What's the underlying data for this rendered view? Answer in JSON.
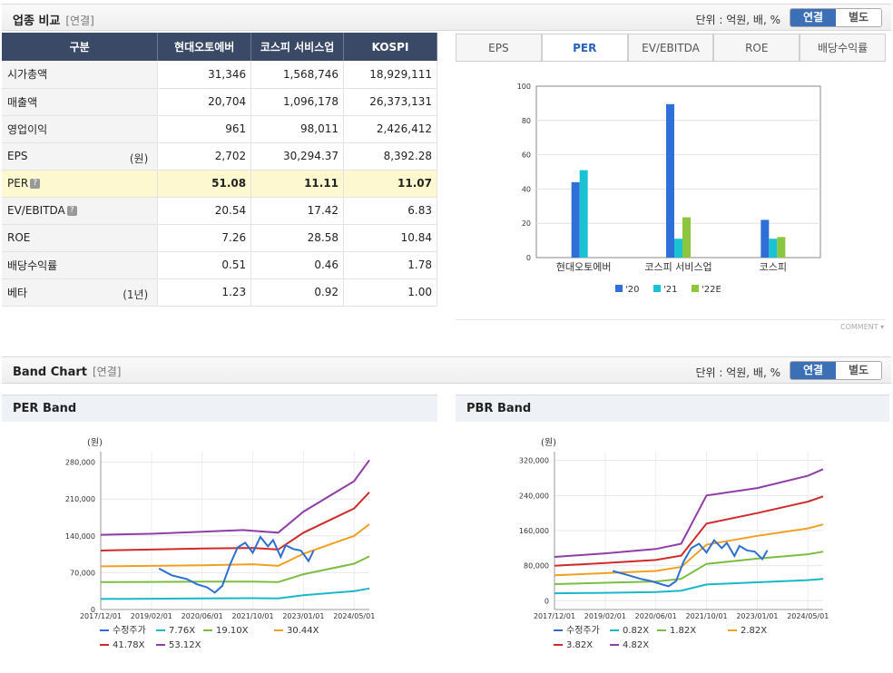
{
  "compare": {
    "title": "업종 비교",
    "sub": "[연결]",
    "unit": "단위 : 억원, 배, %",
    "toggle": [
      "연결",
      "별도"
    ],
    "headers": [
      "구분",
      "현대오토에버",
      "코스피 서비스업",
      "KOSPI"
    ],
    "rows": [
      {
        "label": "시가총액",
        "unit": "",
        "values": [
          "31,346",
          "1,568,746",
          "18,929,111"
        ]
      },
      {
        "label": "매출액",
        "unit": "",
        "values": [
          "20,704",
          "1,096,178",
          "26,373,131"
        ]
      },
      {
        "label": "영업이익",
        "unit": "",
        "values": [
          "961",
          "98,011",
          "2,426,412"
        ]
      },
      {
        "label": "EPS",
        "unit": "(원)",
        "values": [
          "2,702",
          "30,294.37",
          "8,392.28"
        ]
      },
      {
        "label": "PER",
        "unit": "",
        "values": [
          "51.08",
          "11.11",
          "11.07"
        ]
      },
      {
        "label": "EV/EBITDA",
        "unit": "",
        "values": [
          "20.54",
          "17.42",
          "6.83"
        ]
      },
      {
        "label": "ROE",
        "unit": "",
        "values": [
          "7.26",
          "28.58",
          "10.84"
        ]
      },
      {
        "label": "배당수익률",
        "unit": "",
        "values": [
          "0.51",
          "0.46",
          "1.78"
        ]
      },
      {
        "label": "베타",
        "unit": "(1년)",
        "values": [
          "1.23",
          "0.92",
          "1.00"
        ]
      }
    ],
    "help_icon": "?"
  },
  "tabs": [
    "EPS",
    "PER",
    "EV/EBITDA",
    "ROE",
    "배당수익률"
  ],
  "comment": "COMMENT",
  "band": {
    "title": "Band Chart",
    "sub": "[연결]",
    "unit": "단위 : 억원, 배, %",
    "toggle": [
      "연결",
      "별도"
    ],
    "per_title": "PER Band",
    "pbr_title": "PBR Band"
  },
  "chart_data": [
    {
      "type": "bar",
      "categories": [
        "현대오토에버",
        "코스피 서비스업",
        "코스피"
      ],
      "series": [
        {
          "name": "'20",
          "color": "#2e6fd8",
          "values": [
            44,
            89.5,
            22
          ]
        },
        {
          "name": "'21",
          "color": "#19c3d3",
          "values": [
            51,
            11,
            11
          ]
        },
        {
          "name": "'22E",
          "color": "#8cc63f",
          "values": [
            null,
            23.5,
            12
          ]
        }
      ],
      "ylim": [
        0,
        100
      ],
      "yticks": [
        0,
        20,
        40,
        60,
        80,
        100
      ]
    },
    {
      "type": "line",
      "title": "PER Band",
      "ylabel": "(원)",
      "x_ticks": [
        "2017/12/01",
        "2019/02/01",
        "2020/06/01",
        "2021/10/01",
        "2023/01/01",
        "2024/05/01"
      ],
      "ylim": [
        0,
        300000
      ],
      "yticks": [
        0,
        70000,
        140000,
        210000,
        280000
      ],
      "ytick_labels": [
        "0",
        "70,000",
        "140,000",
        "210,000",
        "280,000"
      ],
      "series": [
        {
          "name": "수정주가",
          "color": "#2c6fd1",
          "points": [
            [
              1.15,
              78000
            ],
            [
              1.4,
              65000
            ],
            [
              1.7,
              58000
            ],
            [
              1.9,
              48000
            ],
            [
              2.1,
              42000
            ],
            [
              2.25,
              32000
            ],
            [
              2.4,
              45000
            ],
            [
              2.55,
              85000
            ],
            [
              2.7,
              118000
            ],
            [
              2.85,
              127000
            ],
            [
              3.0,
              108000
            ],
            [
              3.15,
              138000
            ],
            [
              3.3,
              120000
            ],
            [
              3.4,
              132000
            ],
            [
              3.55,
              100000
            ],
            [
              3.65,
              122000
            ],
            [
              3.8,
              115000
            ],
            [
              3.95,
              112000
            ],
            [
              4.1,
              92000
            ],
            [
              4.2,
              112000
            ]
          ]
        },
        {
          "name": "7.76X",
          "color": "#19b8c8",
          "points": [
            [
              0,
              20000
            ],
            [
              1,
              20500
            ],
            [
              2,
              21000
            ],
            [
              3,
              21500
            ],
            [
              3.5,
              21000
            ],
            [
              4,
              27000
            ],
            [
              5,
              35000
            ],
            [
              5.3,
              40000
            ]
          ]
        },
        {
          "name": "19.10X",
          "color": "#7bbd42",
          "points": [
            [
              0,
              52000
            ],
            [
              1,
              52500
            ],
            [
              2,
              53000
            ],
            [
              3,
              53000
            ],
            [
              3.5,
              52000
            ],
            [
              4,
              67000
            ],
            [
              5,
              87000
            ],
            [
              5.3,
              101000
            ]
          ]
        },
        {
          "name": "30.44X",
          "color": "#f0a020",
          "points": [
            [
              0,
              82000
            ],
            [
              1,
              83000
            ],
            [
              2,
              84000
            ],
            [
              3,
              86000
            ],
            [
              3.5,
              83000
            ],
            [
              4,
              106000
            ],
            [
              5,
              140000
            ],
            [
              5.3,
              162000
            ]
          ]
        },
        {
          "name": "41.78X",
          "color": "#d02a2a",
          "points": [
            [
              0,
              112000
            ],
            [
              1,
              114000
            ],
            [
              2,
              116000
            ],
            [
              3,
              117000
            ],
            [
              3.5,
              114000
            ],
            [
              4,
              146000
            ],
            [
              5,
              192000
            ],
            [
              5.3,
              223000
            ]
          ]
        },
        {
          "name": "53.12X",
          "color": "#8e3fa5",
          "points": [
            [
              0,
              142000
            ],
            [
              1,
              144000
            ],
            [
              2,
              148000
            ],
            [
              2.8,
              151000
            ],
            [
              3.5,
              146000
            ],
            [
              4,
              186000
            ],
            [
              5,
              244000
            ],
            [
              5.3,
              284000
            ]
          ]
        }
      ]
    },
    {
      "type": "line",
      "title": "PBR Band",
      "ylabel": "(원)",
      "x_ticks": [
        "2017/12/01",
        "2019/02/01",
        "2020/06/01",
        "2021/10/01",
        "2023/01/01",
        "2024/05/01"
      ],
      "ylim": [
        -20000,
        340000
      ],
      "yticks": [
        0,
        80000,
        160000,
        240000,
        320000
      ],
      "ytick_labels": [
        "0",
        "80,000",
        "160,000",
        "240,000",
        "320,000"
      ],
      "series": [
        {
          "name": "수정주가",
          "color": "#2c6fd1",
          "points": [
            [
              1.15,
              68000
            ],
            [
              1.4,
              60000
            ],
            [
              1.7,
              50000
            ],
            [
              1.9,
              45000
            ],
            [
              2.1,
              38000
            ],
            [
              2.25,
              33000
            ],
            [
              2.4,
              45000
            ],
            [
              2.55,
              90000
            ],
            [
              2.7,
              120000
            ],
            [
              2.85,
              130000
            ],
            [
              3.0,
              110000
            ],
            [
              3.15,
              138000
            ],
            [
              3.3,
              120000
            ],
            [
              3.4,
              132000
            ],
            [
              3.55,
              102000
            ],
            [
              3.65,
              125000
            ],
            [
              3.8,
              115000
            ],
            [
              3.95,
              112000
            ],
            [
              4.1,
              95000
            ],
            [
              4.2,
              115000
            ]
          ]
        },
        {
          "name": "0.82X",
          "color": "#19b8c8",
          "points": [
            [
              0,
              17000
            ],
            [
              1,
              18000
            ],
            [
              2,
              20000
            ],
            [
              2.5,
              23000
            ],
            [
              3,
              37000
            ],
            [
              4,
              42000
            ],
            [
              5,
              47000
            ],
            [
              5.3,
              50000
            ]
          ]
        },
        {
          "name": "1.82X",
          "color": "#7bbd42",
          "points": [
            [
              0,
              38000
            ],
            [
              1,
              41000
            ],
            [
              2,
              44000
            ],
            [
              2.5,
              50000
            ],
            [
              3,
              84000
            ],
            [
              4,
              96000
            ],
            [
              5,
              106000
            ],
            [
              5.3,
              112000
            ]
          ]
        },
        {
          "name": "2.82X",
          "color": "#f0a020",
          "points": [
            [
              0,
              58000
            ],
            [
              1,
              63000
            ],
            [
              2,
              68000
            ],
            [
              2.5,
              77000
            ],
            [
              3,
              128000
            ],
            [
              4,
              148000
            ],
            [
              5,
              165000
            ],
            [
              5.3,
              174000
            ]
          ]
        },
        {
          "name": "3.82X",
          "color": "#d02a2a",
          "points": [
            [
              0,
              80000
            ],
            [
              1,
              86000
            ],
            [
              2,
              93000
            ],
            [
              2.5,
              103000
            ],
            [
              3,
              176000
            ],
            [
              4,
              200000
            ],
            [
              5,
              226000
            ],
            [
              5.3,
              238000
            ]
          ]
        },
        {
          "name": "4.82X",
          "color": "#8e3fa5",
          "points": [
            [
              0,
              100000
            ],
            [
              1,
              108000
            ],
            [
              2,
              118000
            ],
            [
              2.5,
              130000
            ],
            [
              3,
              240000
            ],
            [
              4,
              257000
            ],
            [
              5,
              285000
            ],
            [
              5.3,
              300000
            ]
          ]
        }
      ]
    }
  ]
}
